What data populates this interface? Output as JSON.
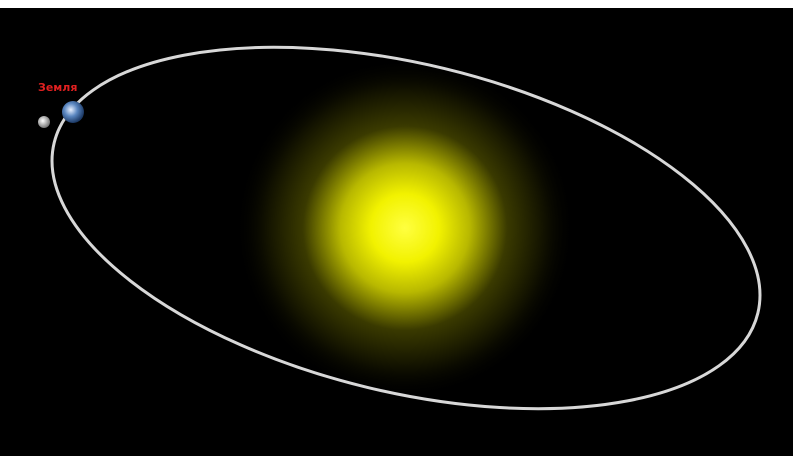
{
  "labels": {
    "earth": "Земля"
  }
}
